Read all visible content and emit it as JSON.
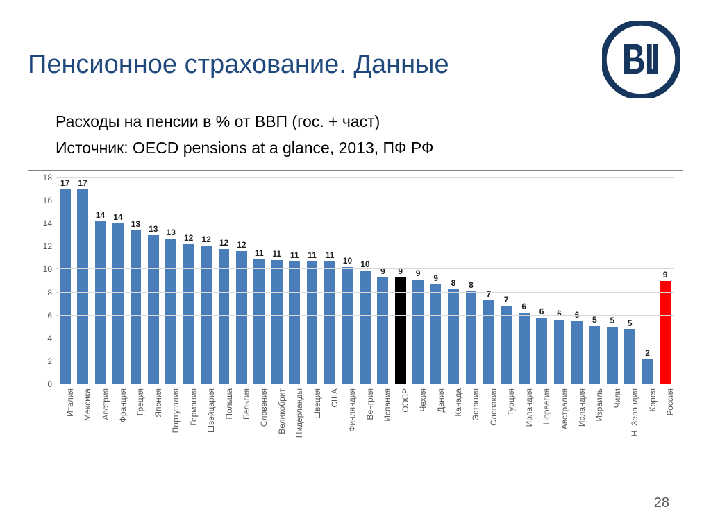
{
  "title": {
    "text": "Пенсионное страхование. Данные",
    "color": "#1f497d"
  },
  "subtitle1": "Расходы на пенсии в % от ВВП (гос. + част)",
  "subtitle2": "Источник: OECD pensions at a glance, 2013, ПФ РФ",
  "page_number": "28",
  "logo": {
    "ring_color": "#17365d",
    "bg_color": "#ffffff"
  },
  "chart": {
    "type": "bar",
    "ylim": [
      0,
      18
    ],
    "ytick_step": 2,
    "yticks": [
      0,
      2,
      4,
      6,
      8,
      10,
      12,
      14,
      16,
      18
    ],
    "grid_color": "#d9d9d9",
    "axis_color": "#7f7f7f",
    "label_fontsize": 12,
    "bar_width": 0.62,
    "default_bar_color": "#4a7ebb",
    "data": [
      {
        "label": "Италия",
        "value": 17.0,
        "display": "17",
        "color": "#4a7ebb"
      },
      {
        "label": "Мексика",
        "value": 17.0,
        "display": "17",
        "color": "#4a7ebb"
      },
      {
        "label": "Австрия",
        "value": 14.2,
        "display": "14",
        "color": "#4a7ebb"
      },
      {
        "label": "Франция",
        "value": 14.0,
        "display": "14",
        "color": "#4a7ebb"
      },
      {
        "label": "Греция",
        "value": 13.4,
        "display": "13",
        "color": "#4a7ebb"
      },
      {
        "label": "Япония",
        "value": 13.0,
        "display": "13",
        "color": "#4a7ebb"
      },
      {
        "label": "Португалия",
        "value": 12.7,
        "display": "13",
        "color": "#4a7ebb"
      },
      {
        "label": "Германия",
        "value": 12.2,
        "display": "12",
        "color": "#4a7ebb"
      },
      {
        "label": "Швейцария",
        "value": 12.1,
        "display": "12",
        "color": "#4a7ebb"
      },
      {
        "label": "Польша",
        "value": 11.8,
        "display": "12",
        "color": "#4a7ebb"
      },
      {
        "label": "Бельгия",
        "value": 11.6,
        "display": "12",
        "color": "#4a7ebb"
      },
      {
        "label": "Словения",
        "value": 10.9,
        "display": "11",
        "color": "#4a7ebb"
      },
      {
        "label": "Великобрит",
        "value": 10.8,
        "display": "11",
        "color": "#4a7ebb"
      },
      {
        "label": "Нидерланды",
        "value": 10.7,
        "display": "11",
        "color": "#4a7ebb"
      },
      {
        "label": "Швеция",
        "value": 10.7,
        "display": "11",
        "color": "#4a7ebb"
      },
      {
        "label": "США",
        "value": 10.7,
        "display": "11",
        "color": "#4a7ebb"
      },
      {
        "label": "Финляндия",
        "value": 10.2,
        "display": "10",
        "color": "#4a7ebb"
      },
      {
        "label": "Венгрия",
        "value": 9.9,
        "display": "10",
        "color": "#4a7ebb"
      },
      {
        "label": "Испания",
        "value": 9.3,
        "display": "9",
        "color": "#4a7ebb"
      },
      {
        "label": "ОЭСР",
        "value": 9.3,
        "display": "9",
        "color": "#000000"
      },
      {
        "label": "Чехия",
        "value": 9.1,
        "display": "9",
        "color": "#4a7ebb"
      },
      {
        "label": "Дания",
        "value": 8.7,
        "display": "9",
        "color": "#4a7ebb"
      },
      {
        "label": "Канада",
        "value": 8.3,
        "display": "8",
        "color": "#4a7ebb"
      },
      {
        "label": "Эстония",
        "value": 8.1,
        "display": "8",
        "color": "#4a7ebb"
      },
      {
        "label": "Словакия",
        "value": 7.3,
        "display": "7",
        "color": "#4a7ebb"
      },
      {
        "label": "Турция",
        "value": 6.8,
        "display": "7",
        "color": "#4a7ebb"
      },
      {
        "label": "Ирландия",
        "value": 6.2,
        "display": "6",
        "color": "#4a7ebb"
      },
      {
        "label": "Норвегия",
        "value": 5.8,
        "display": "6",
        "color": "#4a7ebb"
      },
      {
        "label": "Австралия",
        "value": 5.6,
        "display": "6",
        "color": "#4a7ebb"
      },
      {
        "label": "Исландия",
        "value": 5.5,
        "display": "6",
        "color": "#4a7ebb"
      },
      {
        "label": "Израиль",
        "value": 5.1,
        "display": "5",
        "color": "#4a7ebb"
      },
      {
        "label": "Чили",
        "value": 5.0,
        "display": "5",
        "color": "#4a7ebb"
      },
      {
        "label": "Н. Зеландия",
        "value": 4.8,
        "display": "5",
        "color": "#4a7ebb"
      },
      {
        "label": "Корея",
        "value": 2.2,
        "display": "2",
        "color": "#4a7ebb"
      },
      {
        "label": "Россия",
        "value": 9.0,
        "display": "9",
        "color": "#ff0000"
      }
    ]
  }
}
